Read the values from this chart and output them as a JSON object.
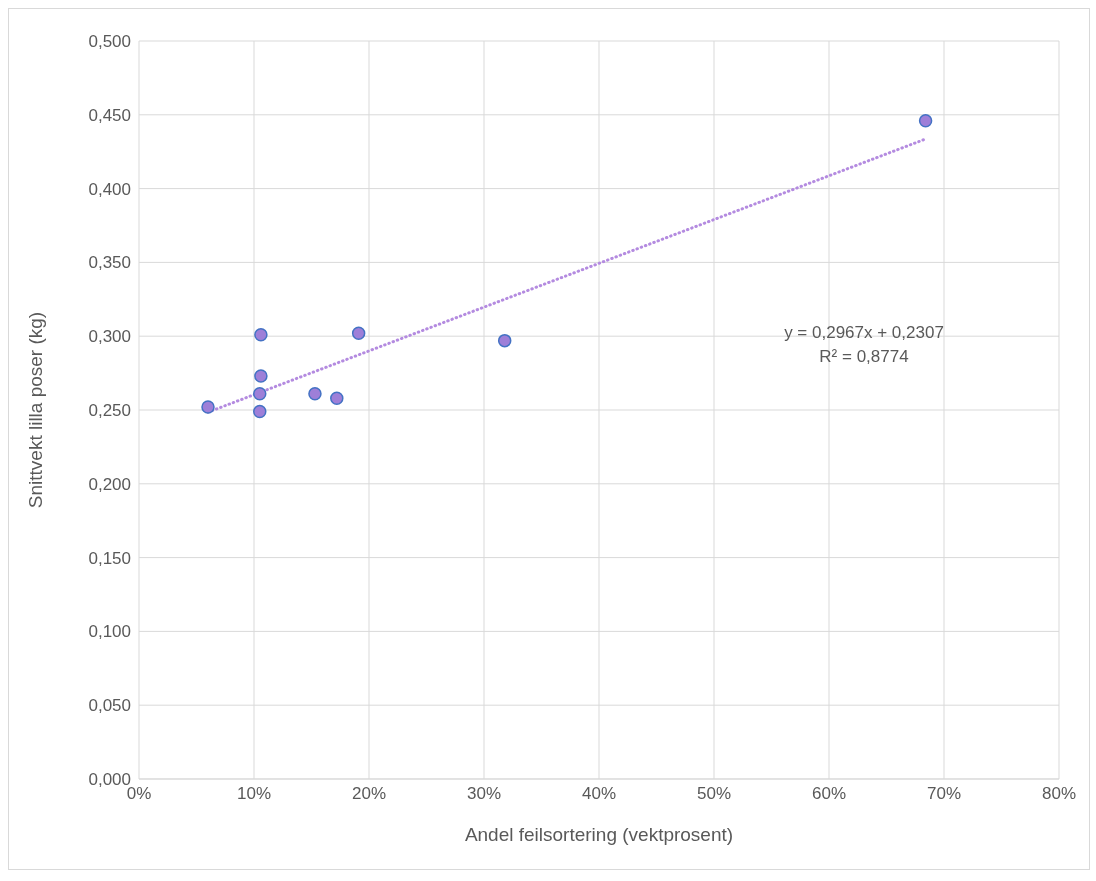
{
  "chart_data": {
    "type": "scatter",
    "xlabel": "Andel feilsortering (vektprosent)",
    "ylabel": "Snittvekt lilla poser (kg)",
    "xlim": [
      0,
      80
    ],
    "ylim": [
      0,
      0.5
    ],
    "xticks": [
      {
        "value": 0,
        "label": "0%"
      },
      {
        "value": 10,
        "label": "10%"
      },
      {
        "value": 20,
        "label": "20%"
      },
      {
        "value": 30,
        "label": "30%"
      },
      {
        "value": 40,
        "label": "40%"
      },
      {
        "value": 50,
        "label": "50%"
      },
      {
        "value": 60,
        "label": "60%"
      },
      {
        "value": 70,
        "label": "70%"
      },
      {
        "value": 80,
        "label": "80%"
      }
    ],
    "yticks": [
      {
        "value": 0,
        "label": "0,000"
      },
      {
        "value": 0.05,
        "label": "0,050"
      },
      {
        "value": 0.1,
        "label": "0,100"
      },
      {
        "value": 0.15,
        "label": "0,150"
      },
      {
        "value": 0.2,
        "label": "0,200"
      },
      {
        "value": 0.25,
        "label": "0,250"
      },
      {
        "value": 0.3,
        "label": "0,300"
      },
      {
        "value": 0.35,
        "label": "0,350"
      },
      {
        "value": 0.4,
        "label": "0,400"
      },
      {
        "value": 0.45,
        "label": "0,450"
      },
      {
        "value": 0.5,
        "label": "0,500"
      }
    ],
    "grid": true,
    "marker": "circle",
    "series": [
      {
        "color": "#9e7fd8",
        "x": [
          6.0,
          10.6,
          10.6,
          10.5,
          10.5,
          15.3,
          17.2,
          19.1,
          31.8,
          68.4
        ],
        "values": [
          0.252,
          0.301,
          0.273,
          0.261,
          0.249,
          0.261,
          0.258,
          0.302,
          0.297,
          0.446
        ]
      },
      {
        "type": "line",
        "color": "#b48be0",
        "line_style": "dotted",
        "marker": "none",
        "x": [
          6.0,
          68.4
        ],
        "values": [
          0.2485,
          0.4336
        ]
      }
    ],
    "annotations": [
      "y = 0,2967x + 0,2307",
      "R² = 0,8774"
    ]
  }
}
